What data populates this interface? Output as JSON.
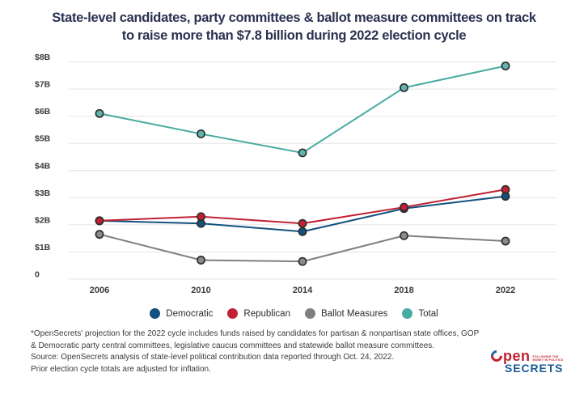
{
  "header": {
    "title_lines": [
      "State-level candidates, party committees & ballot measure committees on track",
      "to raise more than $7.8 billion during 2022 election cycle"
    ]
  },
  "chart_data": {
    "type": "line",
    "title": "State-level candidates, party committees & ballot measure committees on track to raise more than $7.8 billion during 2022 election cycle",
    "units": "billions USD",
    "categories": [
      "2006",
      "2010",
      "2014",
      "2018",
      "2022"
    ],
    "series": [
      {
        "name": "Democratic",
        "color": "#14517f",
        "dot_color": "#14517f",
        "z": 3,
        "values": [
          2.15,
          2.05,
          1.75,
          2.6,
          3.05
        ]
      },
      {
        "name": "Republican",
        "color": "#c12033",
        "dot_color": "#c12033",
        "z": 4,
        "values": [
          2.15,
          2.3,
          2.05,
          2.65,
          3.3
        ]
      },
      {
        "name": "Ballot Measures",
        "color": "#7f7f7f",
        "dot_color": "#8a8a8a",
        "z": 1,
        "values": [
          1.65,
          0.7,
          0.65,
          1.6,
          1.4
        ]
      },
      {
        "name": "Total",
        "color": "#49aba2",
        "dot_color": "#5fb5ad",
        "z": 2,
        "values": [
          6.1,
          5.35,
          4.65,
          7.05,
          7.85
        ]
      }
    ],
    "ylim": [
      0,
      8
    ],
    "yticks": [
      {
        "v": 0,
        "label": "0"
      },
      {
        "v": 1,
        "label": "$1B"
      },
      {
        "v": 2,
        "label": "$2B"
      },
      {
        "v": 3,
        "label": "$3B"
      },
      {
        "v": 4,
        "label": "$4B"
      },
      {
        "v": 5,
        "label": "$5B"
      },
      {
        "v": 6,
        "label": "$6B"
      },
      {
        "v": 7,
        "label": "$7B"
      },
      {
        "v": 8,
        "label": "$8B"
      }
    ],
    "xlabel": "",
    "ylabel": "",
    "grid": true,
    "legend_position": "bottom"
  },
  "footnotes": {
    "lines": [
      "*OpenSecrets' projection for the 2022 cycle includes funds raised by candidates for partisan & nonpartisan state offices, GOP",
      "& Democratic party central committees, legislative caucus committees and statewide ballot measure committees.",
      "Source: OpenSecrets analysis of state-level political contribution data reported through Oct. 24, 2022.",
      "Prior election cycle totals are adjusted for inflation."
    ]
  },
  "logo": {
    "open_rest": "pen",
    "secrets": "SECRETS",
    "tagline": [
      "FOLLOWING THE",
      "MONEY IN POLITICS"
    ]
  },
  "colors": {
    "title": "#2a3150",
    "axis_text": "#3a3a3a",
    "gridline": "#e4e4e4",
    "dot_outline": "#2e2e2e",
    "logo_red": "#c5202e",
    "logo_blue": "#1a5a94"
  }
}
